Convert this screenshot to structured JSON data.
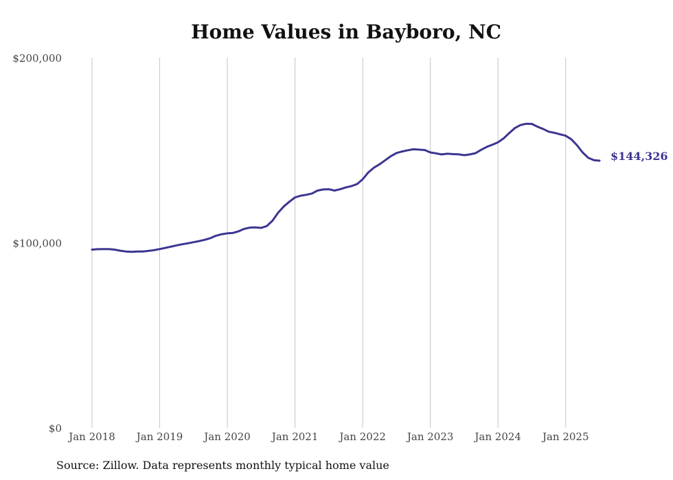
{
  "colors": {
    "line": "#3b3591",
    "grid": "#c4c4c4",
    "text": "#444444"
  },
  "chart_data": {
    "type": "line",
    "title": "Home Values in Bayboro, NC",
    "source": "Source: Zillow. Data represents monthly typical home value",
    "xlabel": "",
    "ylabel": "",
    "ylim": [
      0,
      200000
    ],
    "xlim": [
      "2018-01",
      "2025-07"
    ],
    "y_ticks": [
      {
        "value": 0,
        "label": "$0"
      },
      {
        "value": 100000,
        "label": "$100,000"
      },
      {
        "value": 200000,
        "label": "$200,000"
      }
    ],
    "x_ticks": [
      {
        "value": "2018-01",
        "label": "Jan 2018"
      },
      {
        "value": "2019-01",
        "label": "Jan 2019"
      },
      {
        "value": "2020-01",
        "label": "Jan 2020"
      },
      {
        "value": "2021-01",
        "label": "Jan 2021"
      },
      {
        "value": "2022-01",
        "label": "Jan 2022"
      },
      {
        "value": "2023-01",
        "label": "Jan 2023"
      },
      {
        "value": "2024-01",
        "label": "Jan 2024"
      },
      {
        "value": "2025-01",
        "label": "Jan 2025"
      }
    ],
    "grid": {
      "vertical": true,
      "horizontal": false
    },
    "end_label": "$144,326",
    "series": [
      {
        "x": [
          "2018-01",
          "2018-02",
          "2018-03",
          "2018-04",
          "2018-05",
          "2018-06",
          "2018-07",
          "2018-08",
          "2018-09",
          "2018-10",
          "2018-11",
          "2018-12",
          "2019-01",
          "2019-02",
          "2019-03",
          "2019-04",
          "2019-05",
          "2019-06",
          "2019-07",
          "2019-08",
          "2019-09",
          "2019-10",
          "2019-11",
          "2019-12",
          "2020-01",
          "2020-02",
          "2020-03",
          "2020-04",
          "2020-05",
          "2020-06",
          "2020-07",
          "2020-08",
          "2020-09",
          "2020-10",
          "2020-11",
          "2020-12",
          "2021-01",
          "2021-02",
          "2021-03",
          "2021-04",
          "2021-05",
          "2021-06",
          "2021-07",
          "2021-08",
          "2021-09",
          "2021-10",
          "2021-11",
          "2021-12",
          "2022-01",
          "2022-02",
          "2022-03",
          "2022-04",
          "2022-05",
          "2022-06",
          "2022-07",
          "2022-08",
          "2022-09",
          "2022-10",
          "2022-11",
          "2022-12",
          "2023-01",
          "2023-02",
          "2023-03",
          "2023-04",
          "2023-05",
          "2023-06",
          "2023-07",
          "2023-08",
          "2023-09",
          "2023-10",
          "2023-11",
          "2023-12",
          "2024-01",
          "2024-02",
          "2024-03",
          "2024-04",
          "2024-05",
          "2024-06",
          "2024-07",
          "2024-08",
          "2024-09",
          "2024-10",
          "2024-11",
          "2024-12",
          "2025-01",
          "2025-02",
          "2025-03",
          "2025-04",
          "2025-05",
          "2025-06",
          "2025-07"
        ],
        "values": [
          96300,
          96500,
          96600,
          96600,
          96300,
          95700,
          95300,
          95100,
          95300,
          95300,
          95600,
          96000,
          96600,
          97200,
          97900,
          98600,
          99200,
          99700,
          100300,
          100900,
          101600,
          102500,
          103800,
          104600,
          105100,
          105300,
          106200,
          107500,
          108200,
          108300,
          108000,
          109000,
          111900,
          116200,
          119600,
          122200,
          124500,
          125400,
          125900,
          126600,
          128200,
          128800,
          128900,
          128200,
          128900,
          129900,
          130600,
          131700,
          134300,
          138000,
          140600,
          142400,
          144600,
          146800,
          148500,
          149300,
          150000,
          150500,
          150300,
          150100,
          148800,
          148300,
          147700,
          148100,
          147900,
          147800,
          147300,
          147700,
          148400,
          150200,
          151800,
          153000,
          154300,
          156400,
          159300,
          162000,
          163600,
          164300,
          164200,
          162700,
          161500,
          160000,
          159400,
          158600,
          157800,
          155900,
          152700,
          148800,
          145900,
          144600,
          144326
        ]
      }
    ]
  }
}
